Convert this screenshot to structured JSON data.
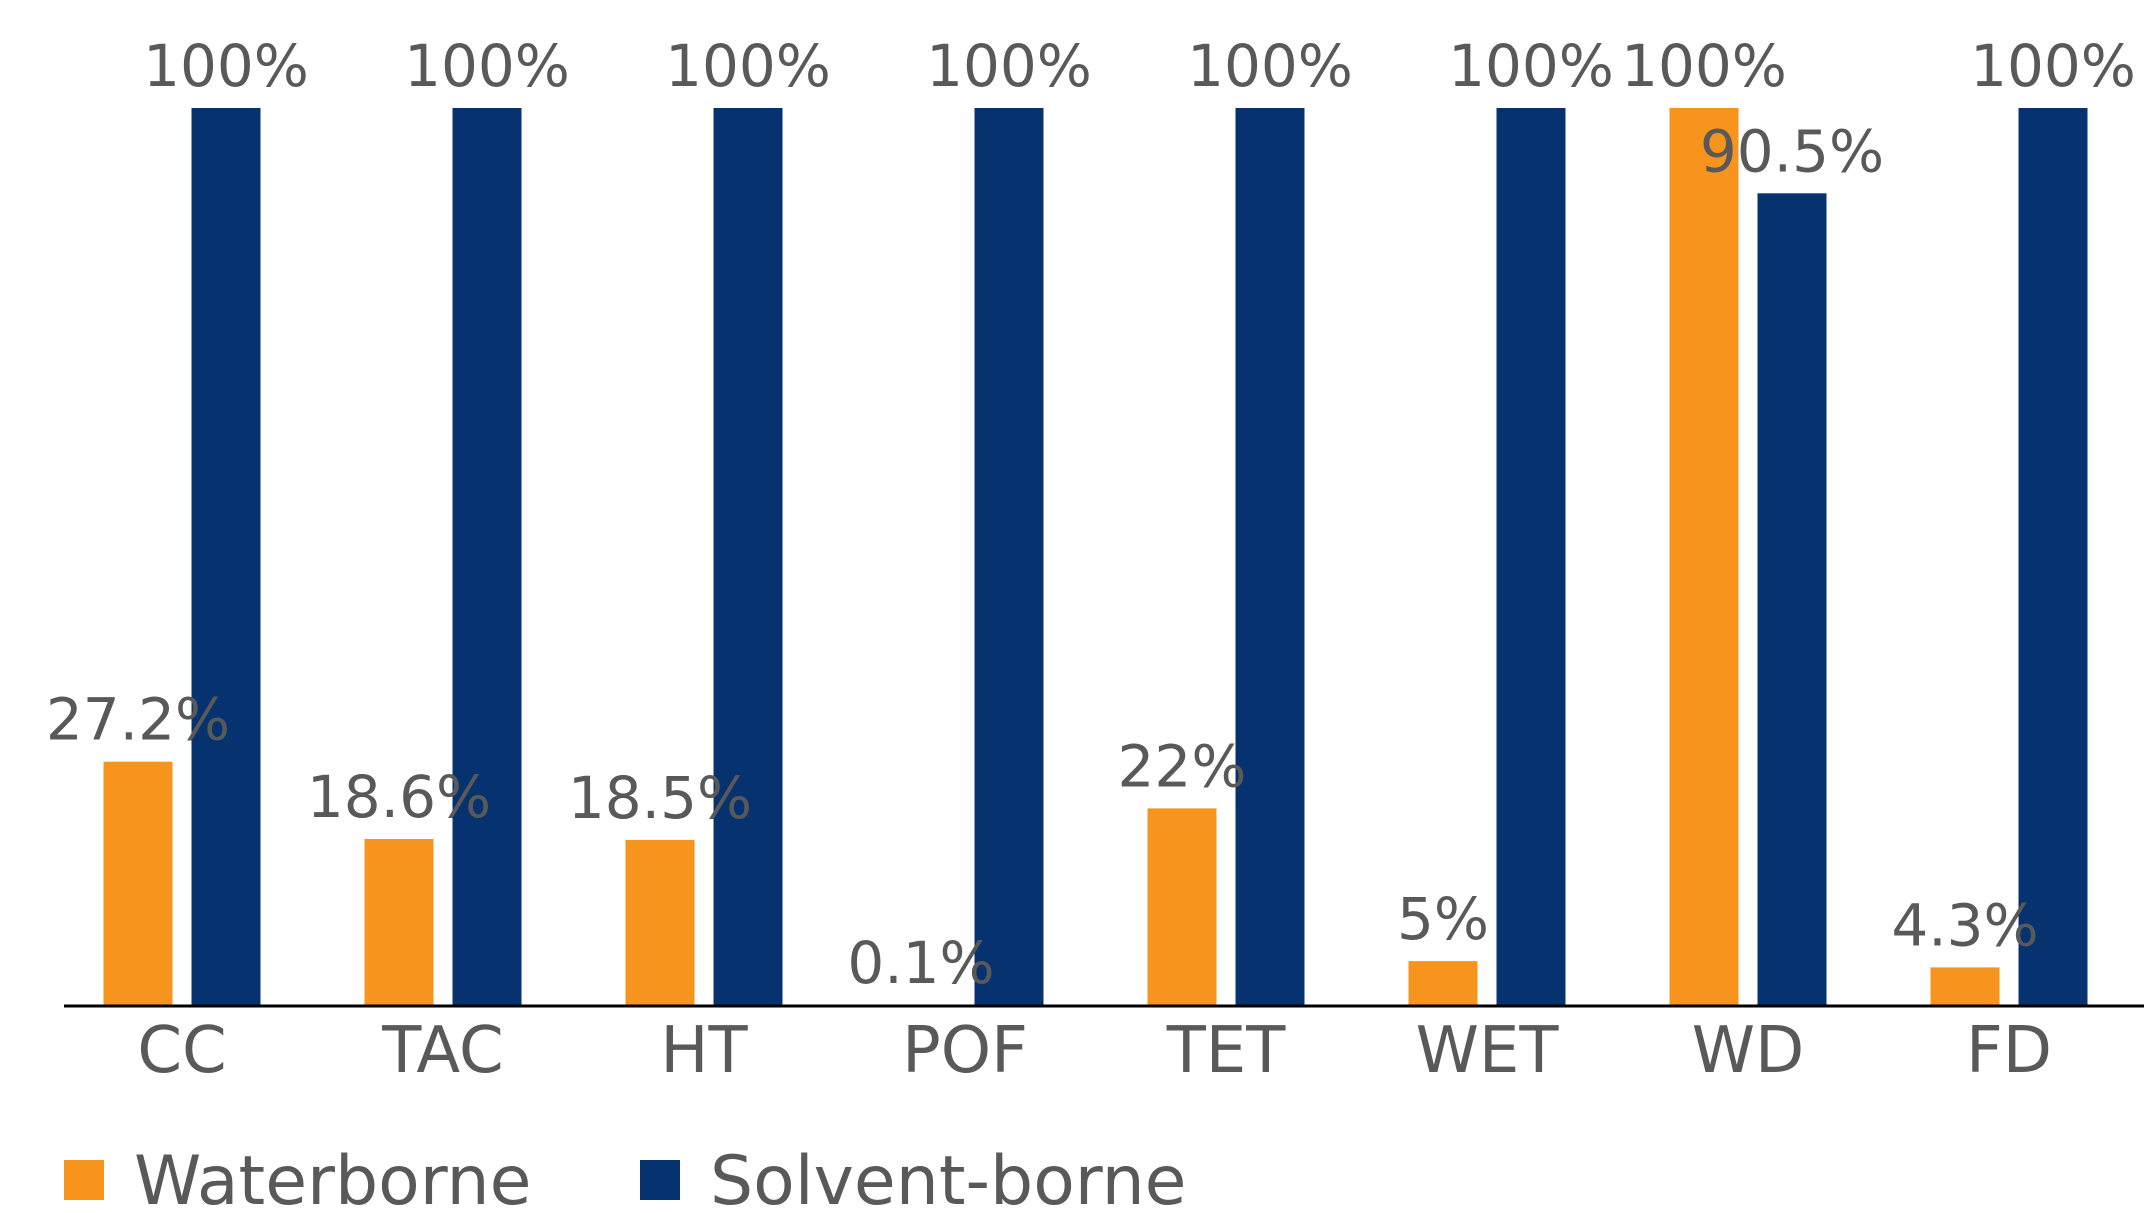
{
  "chart_data": {
    "type": "bar",
    "title": "",
    "xlabel": "",
    "ylabel": "",
    "ylim": [
      0,
      100
    ],
    "grid": false,
    "legend_position": "bottom-left",
    "categories": [
      "CC",
      "TAC",
      "HT",
      "POF",
      "TET",
      "WET",
      "WD",
      "FD"
    ],
    "series": [
      {
        "name": "Waterborne",
        "color": "#F7941D",
        "values": [
          27.2,
          18.6,
          18.5,
          0.1,
          22,
          5,
          100,
          4.3
        ],
        "labels": [
          "27.2%",
          "18.6%",
          "18.5%",
          "0.1%",
          "22%",
          "5%",
          "100%",
          "4.3%"
        ]
      },
      {
        "name": "Solvent-borne",
        "color": "#06336F",
        "values": [
          100,
          100,
          100,
          100,
          100,
          100,
          90.5,
          100
        ],
        "labels": [
          "100%",
          "100%",
          "100%",
          "100%",
          "100%",
          "100%",
          "90.5%",
          "100%"
        ]
      }
    ]
  }
}
